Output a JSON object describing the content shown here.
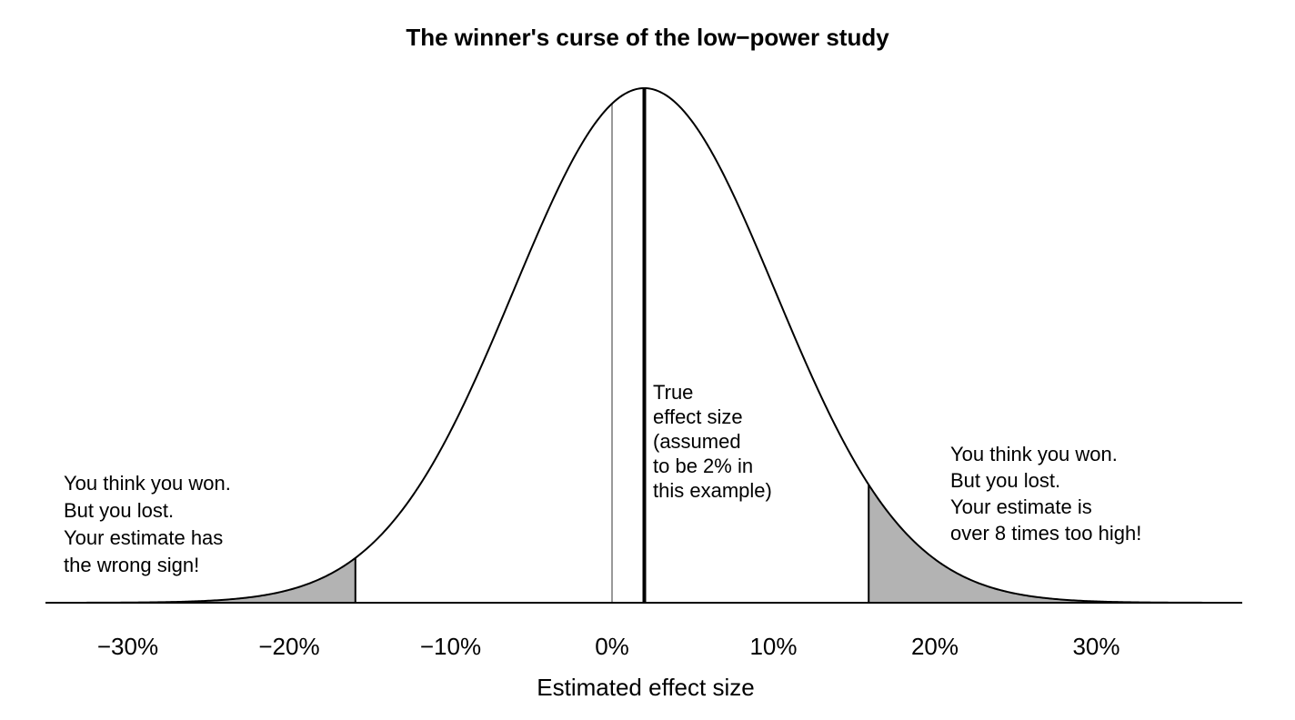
{
  "chart_data": {
    "type": "area",
    "title": "The winner's curse of the low−power study",
    "xlabel": "Estimated effect size",
    "ylabel": "",
    "xlim": [
      -35,
      39
    ],
    "x_unit": "%",
    "x_ticks": [
      {
        "value": -30,
        "label": "−30%"
      },
      {
        "value": -20,
        "label": "−20%"
      },
      {
        "value": -10,
        "label": "−10%"
      },
      {
        "value": 0,
        "label": "0%"
      },
      {
        "value": 10,
        "label": "10%"
      },
      {
        "value": 20,
        "label": "20%"
      },
      {
        "value": 30,
        "label": "30%"
      }
    ],
    "grid": false,
    "distribution": {
      "kind": "normal",
      "mean": 2,
      "sd": 8.1
    },
    "shaded_regions": [
      {
        "from": -35,
        "to": -15.9,
        "color": "#b3b3b3"
      },
      {
        "from": 15.9,
        "to": 39,
        "color": "#b3b3b3"
      }
    ],
    "vertical_lines": [
      {
        "x": 0,
        "color": "#999999"
      },
      {
        "x": 2,
        "color": "#000000"
      }
    ],
    "annotations": [
      {
        "id": "true-effect",
        "lines": [
          "True",
          "effect size",
          "(assumed",
          "to be 2% in",
          "this example)"
        ]
      },
      {
        "id": "left-tail",
        "lines": [
          "You think you won.",
          "But you lost.",
          "Your estimate has",
          "the wrong sign!"
        ]
      },
      {
        "id": "right-tail",
        "lines": [
          "You think you won.",
          "But you lost.",
          "Your estimate is",
          "over 8 times too high!"
        ]
      }
    ]
  }
}
